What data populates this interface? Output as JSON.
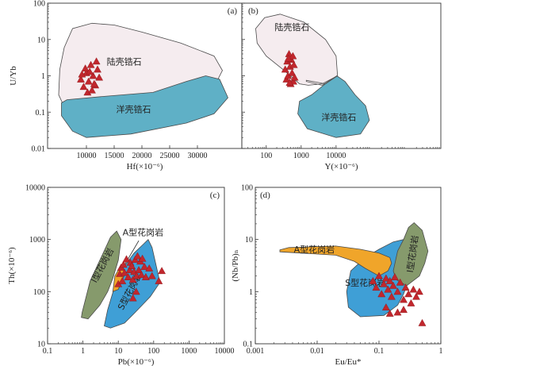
{
  "colors": {
    "continental_fill": "#f3e9ec",
    "oceanic_fill": "#5fb0c6",
    "i_type_fill": "#869a6c",
    "s_type_fill": "#3f9fd6",
    "a_type_fill": "#f0a52a",
    "marker": "#c1272d"
  },
  "chart_data": [
    {
      "type": "scatter",
      "panel_label": "(a)",
      "xlabel": "Hf(×10⁻⁶)",
      "ylabel": "U/Yb",
      "x_scale": "linear",
      "y_scale": "log",
      "xlim": [
        3000,
        38000
      ],
      "ylim": [
        0.01,
        100
      ],
      "x_ticks": [
        {
          "value": 10000,
          "label": "10000"
        },
        {
          "value": 15000,
          "label": "15000"
        },
        {
          "value": 20000,
          "label": "20000"
        },
        {
          "value": 25000,
          "label": "25000"
        },
        {
          "value": 30000,
          "label": "30000"
        }
      ],
      "y_ticks": [
        {
          "value": 0.01,
          "label": "0.01"
        },
        {
          "value": 0.1,
          "label": "0.1"
        },
        {
          "value": 1,
          "label": "1"
        },
        {
          "value": 10,
          "label": "10"
        },
        {
          "value": 100,
          "label": "100"
        }
      ],
      "fields": [
        {
          "name": "陆壳锆石",
          "fill": "continental",
          "polygon": [
            [
              6000,
              6
            ],
            [
              7500,
              20
            ],
            [
              11000,
              28
            ],
            [
              15000,
              25
            ],
            [
              20000,
              16
            ],
            [
              27000,
              8
            ],
            [
              33000,
              3.5
            ],
            [
              34500,
              1.4
            ],
            [
              33000,
              0.5
            ],
            [
              25000,
              0.2
            ],
            [
              15000,
              0.14
            ],
            [
              9000,
              0.12
            ],
            [
              6000,
              0.14
            ],
            [
              5000,
              0.3
            ],
            [
              5200,
              1.5
            ]
          ],
          "label": {
            "text": "陆壳锆石",
            "x": 16800,
            "y": 2.0
          }
        },
        {
          "name": "洋壳锆石",
          "fill": "oceanic",
          "polygon": [
            [
              5500,
              0.18
            ],
            [
              6500,
              0.22
            ],
            [
              13000,
              0.27
            ],
            [
              22000,
              0.35
            ],
            [
              28000,
              0.7
            ],
            [
              31500,
              1.0
            ],
            [
              34000,
              0.8
            ],
            [
              35500,
              0.25
            ],
            [
              33000,
              0.09
            ],
            [
              28000,
              0.05
            ],
            [
              18000,
              0.025
            ],
            [
              10000,
              0.02
            ],
            [
              7500,
              0.03
            ],
            [
              5500,
              0.08
            ]
          ],
          "label": {
            "text": "洋壳锆石",
            "x": 18500,
            "y": 0.1
          }
        }
      ],
      "points": [
        [
          9000,
          0.8
        ],
        [
          9500,
          0.5
        ],
        [
          10000,
          1.2
        ],
        [
          10400,
          0.7
        ],
        [
          10800,
          2.0
        ],
        [
          11200,
          1.0
        ],
        [
          11600,
          0.55
        ],
        [
          12000,
          1.5
        ],
        [
          10200,
          0.35
        ],
        [
          11000,
          0.4
        ],
        [
          9800,
          1.6
        ],
        [
          11800,
          2.5
        ],
        [
          12300,
          0.9
        ],
        [
          9200,
          1.1
        ],
        [
          10600,
          1.3
        ],
        [
          11400,
          0.6
        ]
      ]
    },
    {
      "type": "scatter",
      "panel_label": "(b)",
      "xlabel": "Y(×10⁻⁶)",
      "ylabel": "",
      "x_scale": "log",
      "y_scale": "log",
      "xlim": [
        20,
        10000000
      ],
      "ylim": [
        0.01,
        100
      ],
      "x_ticks": [
        {
          "value": 100,
          "label": "100"
        },
        {
          "value": 1000,
          "label": "1000"
        },
        {
          "value": 10000,
          "label": "10000"
        }
      ],
      "y_ticks": [
        {
          "value": 0.01,
          "label": ""
        },
        {
          "value": 0.1,
          "label": ""
        },
        {
          "value": 1,
          "label": ""
        },
        {
          "value": 10,
          "label": ""
        },
        {
          "value": 100,
          "label": ""
        }
      ],
      "fields": [
        {
          "name": "陆壳锆石",
          "fill": "continental",
          "polygon": [
            [
              50,
              20
            ],
            [
              90,
              40
            ],
            [
              250,
              50
            ],
            [
              1200,
              30
            ],
            [
              5000,
              10
            ],
            [
              10000,
              3.5
            ],
            [
              11000,
              1.0
            ],
            [
              4000,
              0.6
            ],
            [
              1600,
              0.55
            ],
            [
              900,
              0.6
            ],
            [
              300,
              1.5
            ],
            [
              100,
              3.5
            ],
            [
              55,
              8
            ]
          ],
          "label": {
            "text": "陆壳锆石",
            "x": 550,
            "y": 18
          }
        },
        {
          "name": "洋壳锆石",
          "fill": "oceanic",
          "polygon": [
            [
              2000,
              0.3
            ],
            [
              6000,
              0.7
            ],
            [
              10500,
              1.0
            ],
            [
              18000,
              0.7
            ],
            [
              35000,
              0.3
            ],
            [
              70000,
              0.15
            ],
            [
              90000,
              0.06
            ],
            [
              50000,
              0.025
            ],
            [
              10000,
              0.02
            ],
            [
              1500,
              0.035
            ],
            [
              800,
              0.09
            ],
            [
              900,
              0.2
            ]
          ],
          "label": {
            "text": "洋壳锆石",
            "x": 12000,
            "y": 0.06
          }
        },
        {
          "name": "",
          "fill": "none",
          "polygon": [
            [
              1400,
              0.75
            ],
            [
              5000,
              0.6
            ],
            [
              11000,
              1.0
            ],
            [
              4000,
              0.55
            ],
            [
              1400,
              0.7
            ]
          ]
        }
      ],
      "points": [
        [
          350,
          1.5
        ],
        [
          380,
          0.8
        ],
        [
          400,
          2.5
        ],
        [
          420,
          1.0
        ],
        [
          450,
          4.0
        ],
        [
          480,
          1.8
        ],
        [
          500,
          0.6
        ],
        [
          520,
          2.8
        ],
        [
          550,
          1.2
        ],
        [
          580,
          3.5
        ],
        [
          600,
          0.7
        ],
        [
          620,
          2.0
        ],
        [
          650,
          0.9
        ],
        [
          430,
          3.0
        ],
        [
          470,
          0.65
        ]
      ]
    },
    {
      "type": "scatter",
      "panel_label": "(c)",
      "xlabel": "Pb(×10⁻⁶)",
      "ylabel": "Th(×10⁻⁶)",
      "x_scale": "log",
      "y_scale": "log",
      "xlim": [
        0.1,
        10000
      ],
      "ylim": [
        10,
        10000
      ],
      "x_ticks": [
        {
          "value": 0.1,
          "label": "0.1"
        },
        {
          "value": 1,
          "label": "1"
        },
        {
          "value": 10,
          "label": "10"
        },
        {
          "value": 100,
          "label": "100"
        },
        {
          "value": 1000,
          "label": "1000"
        },
        {
          "value": 10000,
          "label": "10000"
        }
      ],
      "y_ticks": [
        {
          "value": 10,
          "label": "10"
        },
        {
          "value": 100,
          "label": "100"
        },
        {
          "value": 1000,
          "label": "1000"
        },
        {
          "value": 10000,
          "label": "10000"
        }
      ],
      "fields": [
        {
          "name": "I型花岗岩",
          "fill": "i_type",
          "polygon": [
            [
              0.9,
              32
            ],
            [
              0.95,
              40
            ],
            [
              1.6,
              160
            ],
            [
              3.5,
              500
            ],
            [
              6,
              1100
            ],
            [
              9,
              1450
            ],
            [
              12,
              1000
            ],
            [
              10,
              400
            ],
            [
              7,
              180
            ],
            [
              5,
              100
            ],
            [
              3,
              55
            ],
            [
              1.4,
              30
            ]
          ],
          "label": {
            "text": "I型花岗岩",
            "x": 4.2,
            "y": 300,
            "rotate": -62
          }
        },
        {
          "name": "S型花岗岩",
          "fill": "s_type",
          "polygon": [
            [
              4,
              22
            ],
            [
              5,
              45
            ],
            [
              8,
              130
            ],
            [
              12,
              250
            ],
            [
              28,
              550
            ],
            [
              50,
              800
            ],
            [
              70,
              1000
            ],
            [
              90,
              700
            ],
            [
              120,
              300
            ],
            [
              150,
              150
            ],
            [
              80,
              80
            ],
            [
              30,
              40
            ],
            [
              15,
              25
            ],
            [
              6,
              20
            ]
          ],
          "label": {
            "text": "S型花岗岩",
            "x": 25,
            "y": 95,
            "rotate": -62
          }
        },
        {
          "name": "A型花岗岩",
          "fill": "a_type",
          "polygon": [
            [
              7,
              100
            ],
            [
              8,
              200
            ],
            [
              11,
              290
            ],
            [
              14,
              280
            ],
            [
              16,
              230
            ],
            [
              13,
              170
            ],
            [
              10,
              110
            ]
          ],
          "label": {
            "text": "A型花岗岩",
            "x": 50,
            "y": 1200
          }
        }
      ],
      "points": [
        [
          10,
          140
        ],
        [
          11,
          220
        ],
        [
          12,
          290
        ],
        [
          13,
          160
        ],
        [
          14,
          330
        ],
        [
          15,
          230
        ],
        [
          17,
          420
        ],
        [
          19,
          190
        ],
        [
          21,
          260
        ],
        [
          22,
          360
        ],
        [
          24,
          310
        ],
        [
          26,
          170
        ],
        [
          28,
          240
        ],
        [
          30,
          410
        ],
        [
          33,
          200
        ],
        [
          35,
          480
        ],
        [
          38,
          260
        ],
        [
          42,
          380
        ],
        [
          45,
          210
        ],
        [
          48,
          430
        ],
        [
          55,
          300
        ],
        [
          60,
          190
        ],
        [
          75,
          280
        ],
        [
          90,
          200
        ],
        [
          140,
          160
        ],
        [
          170,
          250
        ],
        [
          26,
          75
        ],
        [
          32,
          100
        ]
      ]
    },
    {
      "type": "scatter",
      "panel_label": "(d)",
      "xlabel": "Eu/Eu*",
      "ylabel": "(Nb/Pb)ₙ",
      "x_scale": "log",
      "y_scale": "log",
      "xlim": [
        0.001,
        1
      ],
      "ylim": [
        0.1,
        100
      ],
      "x_ticks": [
        {
          "value": 0.001,
          "label": "0.001"
        },
        {
          "value": 0.01,
          "label": "0.01"
        },
        {
          "value": 0.1,
          "label": "0.1"
        },
        {
          "value": 1,
          "label": "1"
        }
      ],
      "y_ticks": [
        {
          "value": 0.1,
          "label": "0.1"
        },
        {
          "value": 1,
          "label": "1"
        },
        {
          "value": 10,
          "label": "10"
        },
        {
          "value": 100,
          "label": "100"
        }
      ],
      "fields": [
        {
          "name": "S型花岗岩",
          "fill": "s_type",
          "polygon": [
            [
              0.035,
              2.5
            ],
            [
              0.06,
              4.5
            ],
            [
              0.1,
              6.5
            ],
            [
              0.17,
              9
            ],
            [
              0.25,
              10
            ],
            [
              0.3,
              7
            ],
            [
              0.35,
              3.5
            ],
            [
              0.32,
              2.0
            ],
            [
              0.25,
              0.9
            ],
            [
              0.2,
              0.55
            ],
            [
              0.12,
              0.35
            ],
            [
              0.05,
              0.33
            ],
            [
              0.032,
              0.5
            ],
            [
              0.03,
              1.0
            ]
          ],
          "label": {
            "text": "S型花岗岩",
            "x": 0.06,
            "y": 1.3
          }
        },
        {
          "name": "I型花岗岩",
          "fill": "i_type",
          "polygon": [
            [
              0.17,
              2.5
            ],
            [
              0.2,
              6
            ],
            [
              0.25,
              10
            ],
            [
              0.3,
              17
            ],
            [
              0.37,
              21
            ],
            [
              0.5,
              15
            ],
            [
              0.62,
              6
            ],
            [
              0.55,
              3.5
            ],
            [
              0.45,
              2.0
            ],
            [
              0.28,
              1.3
            ],
            [
              0.19,
              1.7
            ]
          ],
          "label": {
            "text": "I型花岗岩",
            "x": 0.39,
            "y": 5.2,
            "rotate": -82
          }
        },
        {
          "name": "A型花岗岩",
          "fill": "a_type",
          "polygon": [
            [
              0.0025,
              6.3
            ],
            [
              0.0035,
              7
            ],
            [
              0.02,
              7.5
            ],
            [
              0.05,
              6.5
            ],
            [
              0.1,
              5.5
            ],
            [
              0.15,
              4.5
            ],
            [
              0.16,
              3.5
            ],
            [
              0.14,
              2.5
            ],
            [
              0.1,
              2.0
            ],
            [
              0.06,
              2.8
            ],
            [
              0.04,
              3.8
            ],
            [
              0.02,
              5
            ],
            [
              0.0025,
              5.8
            ]
          ],
          "label": {
            "text": "A型花岗岩",
            "x": 0.009,
            "y": 5.6
          }
        }
      ],
      "points": [
        [
          0.08,
          1.6
        ],
        [
          0.09,
          1.2
        ],
        [
          0.1,
          2.0
        ],
        [
          0.11,
          0.9
        ],
        [
          0.12,
          1.4
        ],
        [
          0.13,
          1.8
        ],
        [
          0.14,
          1.1
        ],
        [
          0.15,
          1.6
        ],
        [
          0.16,
          0.8
        ],
        [
          0.17,
          1.3
        ],
        [
          0.18,
          1.9
        ],
        [
          0.2,
          1.0
        ],
        [
          0.22,
          1.5
        ],
        [
          0.25,
          0.7
        ],
        [
          0.27,
          1.2
        ],
        [
          0.3,
          0.9
        ],
        [
          0.33,
          0.6
        ],
        [
          0.36,
          1.1
        ],
        [
          0.4,
          0.8
        ],
        [
          0.45,
          1.0
        ],
        [
          0.5,
          0.25
        ],
        [
          0.2,
          0.4
        ],
        [
          0.25,
          0.45
        ],
        [
          0.15,
          0.38
        ],
        [
          0.13,
          0.5
        ]
      ]
    }
  ]
}
